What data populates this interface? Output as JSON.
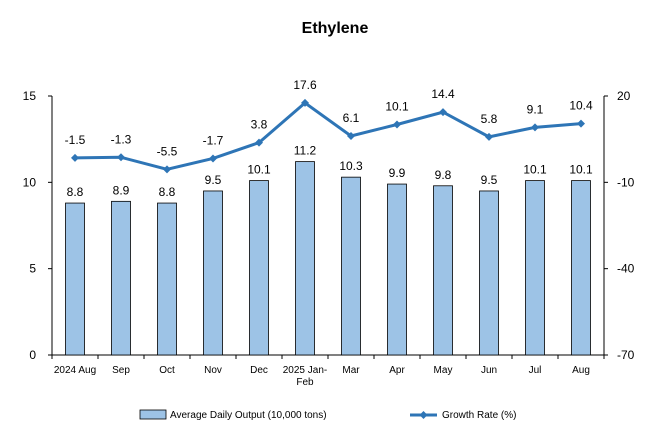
{
  "chart_data": {
    "type": "bar",
    "title": "Ethylene",
    "categories": [
      [
        "2024 Aug"
      ],
      [
        "Sep"
      ],
      [
        "Oct"
      ],
      [
        "Nov"
      ],
      [
        "Dec"
      ],
      [
        "2025 Jan-",
        "Feb"
      ],
      [
        "Mar"
      ],
      [
        "Apr"
      ],
      [
        "May"
      ],
      [
        "Jun"
      ],
      [
        "Jul"
      ],
      [
        "Aug"
      ]
    ],
    "series": [
      {
        "name": "Average Daily Output (10,000 tons)",
        "type": "bar",
        "axis": "left",
        "color": "#9dc3e6",
        "values": [
          8.8,
          8.9,
          8.8,
          9.5,
          10.1,
          11.2,
          10.3,
          9.9,
          9.8,
          9.5,
          10.1,
          10.1
        ]
      },
      {
        "name": "Growth Rate (%)",
        "type": "line",
        "axis": "right",
        "color": "#2e75b6",
        "values": [
          -1.5,
          -1.3,
          -5.5,
          -1.7,
          3.8,
          17.6,
          6.1,
          10.1,
          14.4,
          5.8,
          9.1,
          10.4
        ]
      }
    ],
    "y_left": {
      "ylim": [
        0,
        15
      ],
      "ticks": [
        0,
        5,
        10,
        15
      ]
    },
    "y_right": {
      "ylim": [
        -70,
        20
      ],
      "ticks": [
        -70,
        -40,
        -10,
        20
      ]
    },
    "grid": false,
    "legend_position": "bottom"
  }
}
